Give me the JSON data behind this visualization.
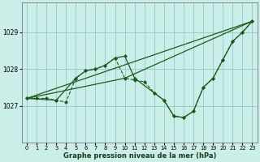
{
  "bg_color": "#cceee8",
  "plot_bg_color": "#cceee8",
  "grid_color": "#88cccc",
  "line_color": "#1a5c1a",
  "marker_color": "#1a5c1a",
  "ylim": [
    1026.0,
    1029.8
  ],
  "xlim": [
    -0.5,
    23.5
  ],
  "yticks": [
    1027,
    1028,
    1029
  ],
  "xticks": [
    0,
    1,
    2,
    3,
    4,
    5,
    6,
    7,
    8,
    9,
    10,
    11,
    12,
    13,
    14,
    15,
    16,
    17,
    18,
    19,
    20,
    21,
    22,
    23
  ],
  "xlabel": "Graphe pression niveau de la mer (hPa)",
  "series": [
    {
      "x": [
        0,
        1,
        2,
        3,
        4,
        5,
        6,
        7,
        8,
        9,
        10,
        11,
        12,
        13,
        14,
        15,
        16,
        17,
        18,
        19,
        20,
        21,
        22,
        23
      ],
      "y": [
        1027.2,
        1027.2,
        1027.2,
        1027.15,
        1027.1,
        1027.75,
        1027.95,
        1028.0,
        1028.1,
        1028.3,
        1027.75,
        1027.7,
        1027.65,
        1027.35,
        1027.15,
        1026.72,
        1026.68,
        1026.85,
        1027.5,
        1027.75,
        1028.25,
        1028.75,
        1029.0,
        1029.3
      ],
      "linestyle": "--",
      "linewidth": 0.8,
      "marker": "D",
      "markersize": 2.0
    },
    {
      "x": [
        0,
        3,
        5,
        6,
        7,
        8,
        9,
        10,
        11,
        13,
        14,
        15,
        16,
        17,
        18,
        19,
        20,
        21,
        22,
        23
      ],
      "y": [
        1027.2,
        1027.15,
        1027.75,
        1027.95,
        1028.0,
        1028.1,
        1028.3,
        1028.35,
        1027.75,
        1027.35,
        1027.15,
        1026.72,
        1026.68,
        1026.85,
        1027.5,
        1027.75,
        1028.25,
        1028.75,
        1029.0,
        1029.3
      ],
      "linestyle": "-",
      "linewidth": 0.9,
      "marker": "D",
      "markersize": 2.0
    },
    {
      "x": [
        0,
        23
      ],
      "y": [
        1027.2,
        1029.3
      ],
      "linestyle": "-",
      "linewidth": 0.9,
      "marker": null,
      "markersize": 0
    },
    {
      "x": [
        0,
        10,
        23
      ],
      "y": [
        1027.2,
        1027.75,
        1029.3
      ],
      "linestyle": "-",
      "linewidth": 0.9,
      "marker": null,
      "markersize": 0
    }
  ]
}
